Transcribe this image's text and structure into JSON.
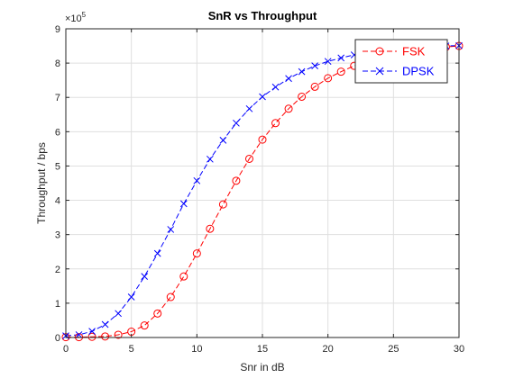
{
  "chart_data": {
    "type": "line",
    "title": "SnR vs Throughput",
    "xlabel": "Snr in dB",
    "ylabel": "Throughput / bps",
    "xlim": [
      0,
      30
    ],
    "ylim": [
      0,
      9
    ],
    "y_scale_exponent_label": "×10",
    "y_scale_exponent_power": "5",
    "x_ticks": [
      0,
      5,
      10,
      15,
      20,
      25,
      30
    ],
    "y_ticks": [
      0,
      1,
      2,
      3,
      4,
      5,
      6,
      7,
      8,
      9
    ],
    "x_tick_labels": [
      "0",
      "5",
      "10",
      "15",
      "20",
      "25",
      "30"
    ],
    "y_tick_labels": [
      "0",
      "1",
      "2",
      "3",
      "4",
      "5",
      "6",
      "7",
      "8",
      "9"
    ],
    "grid": true,
    "legend_position": "top-right",
    "x": [
      0,
      1,
      2,
      3,
      4,
      5,
      6,
      7,
      8,
      9,
      10,
      11,
      12,
      13,
      14,
      15,
      16,
      17,
      18,
      19,
      20,
      21,
      22,
      23,
      24,
      25,
      26,
      27,
      28,
      29,
      30
    ],
    "series": [
      {
        "name": "FSK",
        "color": "#ff0000",
        "marker": "circle",
        "line_style": "dashed",
        "values": [
          0.01,
          0.01,
          0.02,
          0.03,
          0.08,
          0.17,
          0.35,
          0.7,
          1.18,
          1.78,
          2.45,
          3.17,
          3.88,
          4.57,
          5.21,
          5.77,
          6.25,
          6.67,
          7.02,
          7.31,
          7.56,
          7.75,
          7.92,
          8.05,
          8.16,
          8.25,
          8.32,
          8.38,
          8.43,
          8.47,
          8.5
        ]
      },
      {
        "name": "DPSK",
        "color": "#0000ff",
        "marker": "x",
        "line_style": "dashed",
        "values": [
          0.05,
          0.08,
          0.18,
          0.38,
          0.7,
          1.18,
          1.78,
          2.45,
          3.15,
          3.9,
          4.57,
          5.2,
          5.75,
          6.25,
          6.67,
          7.02,
          7.3,
          7.55,
          7.75,
          7.92,
          8.05,
          8.15,
          8.24,
          8.31,
          8.37,
          8.41,
          8.44,
          8.47,
          8.49,
          8.5,
          8.51
        ]
      }
    ]
  }
}
